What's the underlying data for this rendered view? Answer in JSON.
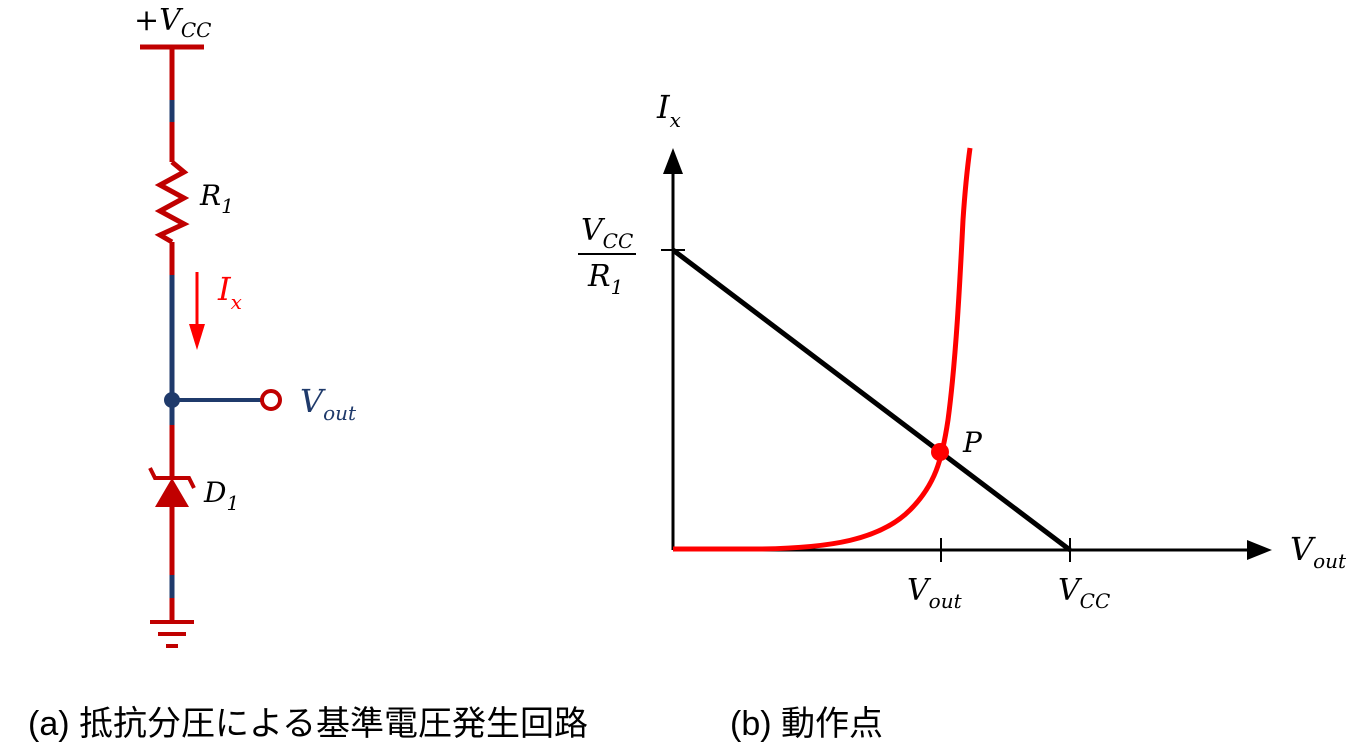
{
  "colors": {
    "wire_red": "#c00000",
    "wire_blue": "#1f3a6b",
    "arrow_red": "#ff0000",
    "curve_red": "#ff0000",
    "black": "#000000"
  },
  "circuit": {
    "vcc_label": {
      "main": "+V",
      "sub": "CC"
    },
    "r1_label": {
      "main": "R",
      "sub": "1"
    },
    "ix_label": {
      "main": "I",
      "sub": "x"
    },
    "vout_label": {
      "main": "V",
      "sub": "out"
    },
    "d1_label": {
      "main": "D",
      "sub": "1"
    }
  },
  "graph": {
    "y_axis_label": {
      "main": "I",
      "sub": "x"
    },
    "x_axis_label": {
      "main": "V",
      "sub": "out"
    },
    "y_tick_numerator": {
      "main": "V",
      "sub": "CC"
    },
    "y_tick_denominator": {
      "main": "R",
      "sub": "1"
    },
    "x_tick_vout": {
      "main": "V",
      "sub": "out"
    },
    "x_tick_vcc": {
      "main": "V",
      "sub": "CC"
    },
    "point_label": "P"
  },
  "captions": {
    "a": "(a)  抵抗分圧による基準電圧発生回路",
    "b": "(b)  動作点"
  }
}
